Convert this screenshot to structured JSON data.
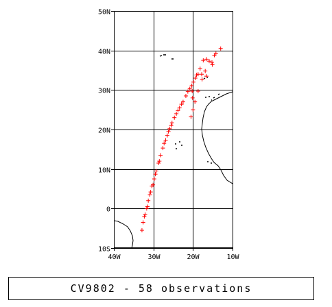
{
  "caption": "CV9802 - 58 observations",
  "map": {
    "lon_range": [
      -40,
      -10
    ],
    "lat_range": [
      -10,
      50
    ],
    "lon_ticks": [
      {
        "value": -40,
        "label": "40W"
      },
      {
        "value": -30,
        "label": "30W"
      },
      {
        "value": -20,
        "label": "20W"
      },
      {
        "value": -10,
        "label": "10W"
      }
    ],
    "lat_ticks": [
      {
        "value": 50,
        "label": "50N"
      },
      {
        "value": 40,
        "label": "40N"
      },
      {
        "value": 30,
        "label": "30N"
      },
      {
        "value": 20,
        "label": "20N"
      },
      {
        "value": 10,
        "label": "10N"
      },
      {
        "value": 0,
        "label": "0"
      },
      {
        "value": -10,
        "label": "10S"
      }
    ],
    "grid": true,
    "marker": "+",
    "marker_color": "#ff0000",
    "observations": [
      [
        -32.9,
        -5.5
      ],
      [
        -32.6,
        -3.5
      ],
      [
        -32.3,
        -2.0
      ],
      [
        -32.1,
        -1.5
      ],
      [
        -31.7,
        0.0
      ],
      [
        -31.5,
        0.5
      ],
      [
        -31.3,
        2.0
      ],
      [
        -30.9,
        3.5
      ],
      [
        -30.7,
        4.2
      ],
      [
        -30.4,
        5.7
      ],
      [
        -30.1,
        6.0
      ],
      [
        -29.8,
        7.5
      ],
      [
        -29.5,
        8.7
      ],
      [
        -29.3,
        9.5
      ],
      [
        -28.7,
        11.5
      ],
      [
        -28.5,
        12.0
      ],
      [
        -28.2,
        13.5
      ],
      [
        -27.6,
        15.3
      ],
      [
        -27.3,
        16.5
      ],
      [
        -26.9,
        17.3
      ],
      [
        -26.5,
        18.5
      ],
      [
        -26.2,
        19.5
      ],
      [
        -25.9,
        20.2
      ],
      [
        -25.5,
        21.0
      ],
      [
        -25.3,
        21.7
      ],
      [
        -24.7,
        23.0
      ],
      [
        -24.2,
        24.0
      ],
      [
        -23.8,
        24.8
      ],
      [
        -23.4,
        25.5
      ],
      [
        -22.9,
        26.4
      ],
      [
        -22.5,
        27.0
      ],
      [
        -21.8,
        28.5
      ],
      [
        -21.3,
        29.6
      ],
      [
        -20.8,
        30.3
      ],
      [
        -20.3,
        31.1
      ],
      [
        -19.9,
        32.0
      ],
      [
        -19.4,
        33.0
      ],
      [
        -19.1,
        33.8
      ],
      [
        -18.7,
        34.0
      ],
      [
        -18.2,
        35.4
      ],
      [
        -17.4,
        37.5
      ],
      [
        -16.6,
        37.8
      ],
      [
        -15.9,
        37.3
      ],
      [
        -15.2,
        37.0
      ],
      [
        -14.6,
        38.8
      ],
      [
        -14.2,
        39.2
      ],
      [
        -13.0,
        40.5
      ],
      [
        -20.2,
        29.7
      ],
      [
        -20.1,
        28.0
      ],
      [
        -20.0,
        25.0
      ],
      [
        -20.5,
        23.2
      ],
      [
        -19.5,
        27.0
      ],
      [
        -18.7,
        29.7
      ],
      [
        -17.7,
        32.7
      ],
      [
        -16.6,
        33.5
      ],
      [
        -15.1,
        36.4
      ],
      [
        -16.9,
        34.8
      ],
      [
        -17.8,
        34.0
      ]
    ]
  }
}
